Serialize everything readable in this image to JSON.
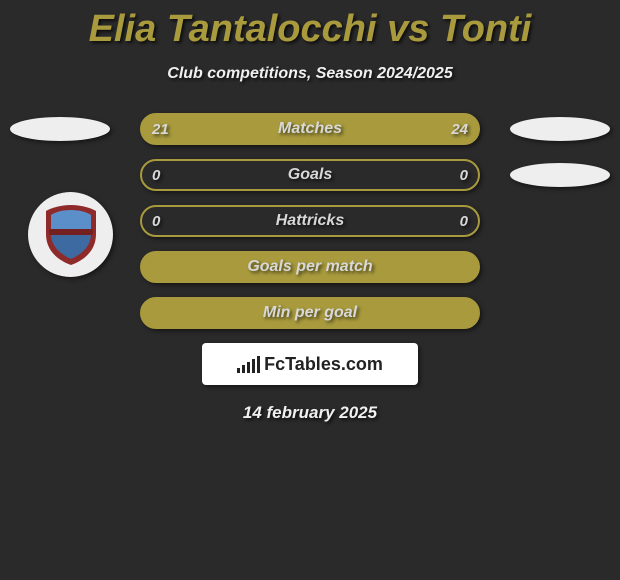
{
  "title_text": "Elia Tantalocchi vs Tonti",
  "title_color": "#a89a3d",
  "subtitle": "Club competitions, Season 2024/2025",
  "pill_border_color": "#a89a3d",
  "pill_fill_color": "#a89a3d",
  "pill_label_color": "#d8d8d8",
  "value_color": "#d8d8d8",
  "side_ellipse_color": "#eeeeee",
  "rows": [
    {
      "label": "Matches",
      "left": "21",
      "right": "24",
      "filled": true,
      "side_left": true,
      "side_right": true
    },
    {
      "label": "Goals",
      "left": "0",
      "right": "0",
      "filled": false,
      "side_left": false,
      "side_right": true
    },
    {
      "label": "Hattricks",
      "left": "0",
      "right": "0",
      "filled": false,
      "side_left": false,
      "side_right": false
    },
    {
      "label": "Goals per match",
      "left": "",
      "right": "",
      "filled": true,
      "side_left": false,
      "side_right": false
    },
    {
      "label": "Min per goal",
      "left": "",
      "right": "",
      "filled": true,
      "side_left": false,
      "side_right": false
    }
  ],
  "badge": {
    "outer_color": "#8f2a2a",
    "inner_top_color": "#5a8fca",
    "inner_bottom_color": "#3d6aa0",
    "banner_color": "#752020"
  },
  "logo_text": "FcTables.com",
  "date_text": "14 february 2025"
}
